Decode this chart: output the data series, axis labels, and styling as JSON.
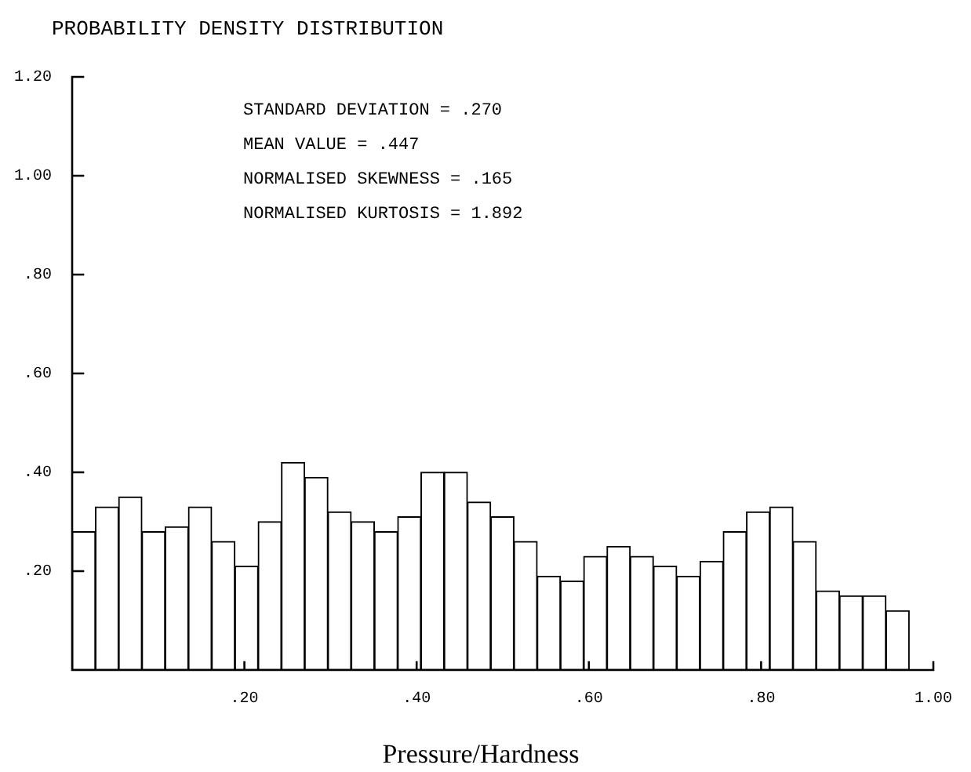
{
  "chart_data": {
    "type": "histogram",
    "title": "PROBABILITY DENSITY DISTRIBUTION",
    "xlabel": "Pressure/Hardness",
    "annotations": [
      "STANDARD DEVIATION = .270",
      "MEAN VALUE = .447",
      "NORMALISED SKEWNESS = .165",
      "NORMALISED KURTOSIS = 1.892"
    ],
    "bins": [
      0,
      0.027,
      0.054,
      0.081,
      0.108,
      0.135,
      0.162,
      0.189,
      0.216,
      0.243,
      0.27,
      0.297,
      0.324,
      0.351,
      0.378,
      0.405,
      0.432,
      0.459,
      0.486,
      0.513,
      0.54,
      0.567,
      0.594,
      0.621,
      0.648,
      0.675,
      0.702,
      0.729,
      0.756,
      0.783,
      0.81,
      0.837,
      0.864,
      0.891,
      0.918,
      0.945,
      0.972
    ],
    "values": [
      0.28,
      0.33,
      0.35,
      0.28,
      0.29,
      0.33,
      0.26,
      0.21,
      0.3,
      0.42,
      0.39,
      0.32,
      0.3,
      0.28,
      0.31,
      0.4,
      0.4,
      0.34,
      0.31,
      0.26,
      0.19,
      0.18,
      0.23,
      0.25,
      0.23,
      0.21,
      0.19,
      0.22,
      0.28,
      0.32,
      0.33,
      0.26,
      0.16,
      0.15,
      0.15,
      0.12
    ],
    "color": "#ffffff",
    "xlim": [
      0,
      1
    ],
    "ylim": [
      0,
      1.2
    ],
    "xticks": [
      {
        "value": 0.2,
        "label": ".20"
      },
      {
        "value": 0.4,
        "label": ".40"
      },
      {
        "value": 0.6,
        "label": ".60"
      },
      {
        "value": 0.8,
        "label": ".80"
      },
      {
        "value": 1,
        "label": "1.00"
      }
    ],
    "yticks": [
      {
        "value": 0.2,
        "label": ".20"
      },
      {
        "value": 0.4,
        "label": ".40"
      },
      {
        "value": 0.6,
        "label": ".60"
      },
      {
        "value": 0.8,
        "label": ".80"
      },
      {
        "value": 1,
        "label": "1.00"
      },
      {
        "value": 1.2,
        "label": "1.20"
      }
    ]
  }
}
